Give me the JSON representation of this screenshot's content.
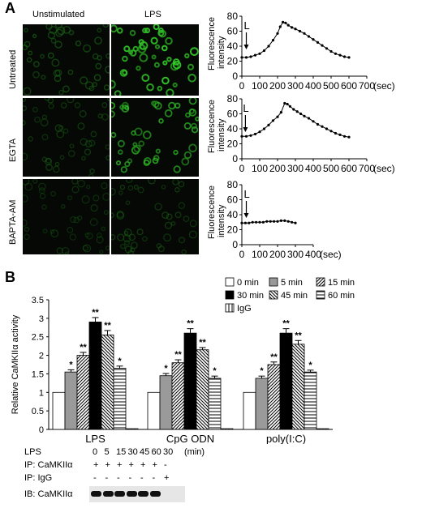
{
  "panel_a": {
    "letter": "A",
    "col_labels": [
      "Unstimulated",
      "LPS"
    ],
    "row_labels": [
      "Untreated",
      "EGTA",
      "BAPTA-AM"
    ],
    "micrograph_density": [
      [
        0.35,
        0.85
      ],
      [
        0.25,
        0.7
      ],
      [
        0.2,
        0.25
      ]
    ]
  },
  "panel_b": {
    "letter": "B",
    "legend": [
      {
        "label": "0  min",
        "pattern": "white"
      },
      {
        "label": "5  min",
        "pattern": "gray"
      },
      {
        "label": "15 min",
        "pattern": "diag-right"
      },
      {
        "label": "30 min",
        "pattern": "black"
      },
      {
        "label": "45 min",
        "pattern": "diag-left"
      },
      {
        "label": "60 min",
        "pattern": "horiz"
      },
      {
        "label": "IgG",
        "pattern": "vert"
      }
    ]
  },
  "western_blot": {
    "lps_label": "LPS",
    "times": [
      "0",
      "5",
      "15",
      "30",
      "45",
      "60",
      "30"
    ],
    "unit": "(min)",
    "rows": [
      {
        "label": "IP: CaMKIIα",
        "marks": [
          "+",
          "+",
          "+",
          "+",
          "+",
          "+",
          "-"
        ]
      },
      {
        "label": "IP: IgG",
        "marks": [
          "-",
          "-",
          "-",
          "-",
          "-",
          "-",
          "+"
        ]
      }
    ],
    "ib_label": "IB: CaMKIIα",
    "band_present": [
      true,
      true,
      true,
      true,
      true,
      true,
      false
    ]
  },
  "chart_data": [
    {
      "type": "line",
      "ylabel": "Fluorescence intensity",
      "xunit": "(sec)",
      "annotation": "L",
      "arrow_x": 25,
      "xlim": [
        0,
        700
      ],
      "ylim": [
        0,
        80
      ],
      "xticks": [
        0,
        100,
        200,
        300,
        400,
        500,
        600,
        700
      ],
      "yticks": [
        0,
        20,
        40,
        60,
        80
      ],
      "points": [
        [
          0,
          25
        ],
        [
          25,
          25
        ],
        [
          50,
          26
        ],
        [
          75,
          28
        ],
        [
          100,
          30
        ],
        [
          125,
          34
        ],
        [
          150,
          40
        ],
        [
          175,
          48
        ],
        [
          200,
          57
        ],
        [
          215,
          66
        ],
        [
          230,
          72
        ],
        [
          245,
          71
        ],
        [
          260,
          68
        ],
        [
          280,
          65
        ],
        [
          300,
          63
        ],
        [
          325,
          60
        ],
        [
          350,
          57
        ],
        [
          375,
          53
        ],
        [
          400,
          49
        ],
        [
          425,
          45
        ],
        [
          450,
          41
        ],
        [
          475,
          37
        ],
        [
          500,
          33
        ],
        [
          525,
          30
        ],
        [
          550,
          28
        ],
        [
          575,
          26
        ],
        [
          600,
          25
        ]
      ]
    },
    {
      "type": "line",
      "ylabel": "Fluorescence intensity",
      "xunit": "(sec)",
      "annotation": "L",
      "arrow_x": 20,
      "xlim": [
        0,
        700
      ],
      "ylim": [
        0,
        80
      ],
      "xticks": [
        0,
        100,
        200,
        300,
        400,
        500,
        600,
        700
      ],
      "yticks": [
        0,
        20,
        40,
        60,
        80
      ],
      "points": [
        [
          0,
          30
        ],
        [
          25,
          30
        ],
        [
          50,
          31
        ],
        [
          75,
          33
        ],
        [
          100,
          36
        ],
        [
          125,
          40
        ],
        [
          150,
          45
        ],
        [
          175,
          51
        ],
        [
          200,
          56
        ],
        [
          220,
          62
        ],
        [
          240,
          74
        ],
        [
          255,
          73
        ],
        [
          270,
          70
        ],
        [
          290,
          66
        ],
        [
          310,
          63
        ],
        [
          330,
          60
        ],
        [
          350,
          57
        ],
        [
          375,
          54
        ],
        [
          400,
          50
        ],
        [
          425,
          46
        ],
        [
          450,
          43
        ],
        [
          475,
          40
        ],
        [
          500,
          37
        ],
        [
          525,
          34
        ],
        [
          550,
          32
        ],
        [
          575,
          30
        ],
        [
          600,
          29
        ]
      ]
    },
    {
      "type": "line",
      "ylabel": "Fluorescence intensity",
      "xunit": "(sec)",
      "annotation": "L",
      "arrow_x": 25,
      "xlim": [
        0,
        400
      ],
      "ylim": [
        0,
        80
      ],
      "xticks": [
        0,
        100,
        200,
        300,
        400
      ],
      "yticks": [
        0,
        20,
        40,
        60,
        80
      ],
      "points": [
        [
          0,
          29
        ],
        [
          20,
          29
        ],
        [
          40,
          29
        ],
        [
          60,
          30
        ],
        [
          80,
          30
        ],
        [
          100,
          30
        ],
        [
          120,
          30
        ],
        [
          140,
          31
        ],
        [
          160,
          31
        ],
        [
          180,
          31
        ],
        [
          200,
          31
        ],
        [
          220,
          32
        ],
        [
          240,
          32
        ],
        [
          260,
          31
        ],
        [
          280,
          30
        ],
        [
          300,
          29
        ]
      ]
    },
    {
      "type": "bar",
      "ylabel": "Relative CaMKIIα activity",
      "ylim": [
        0,
        3.5
      ],
      "yticks": [
        "0",
        "0.5",
        "1",
        "1.5",
        "2",
        "2.5",
        "3",
        "3.5"
      ],
      "categories": [
        "LPS",
        "CpG  ODN",
        "poly(I:C)"
      ],
      "series": [
        {
          "name": "0  min",
          "values": [
            1.0,
            1.0,
            1.0
          ],
          "errors": [
            0,
            0,
            0
          ],
          "stars": [
            "",
            "",
            ""
          ]
        },
        {
          "name": "5  min",
          "values": [
            1.55,
            1.45,
            1.38
          ],
          "errors": [
            0.06,
            0.06,
            0.06
          ],
          "stars": [
            "*",
            "*",
            "*"
          ]
        },
        {
          "name": "15 min",
          "values": [
            2.0,
            1.8,
            1.75
          ],
          "errors": [
            0.08,
            0.08,
            0.07
          ],
          "stars": [
            "**",
            "**",
            "**"
          ]
        },
        {
          "name": "30 min",
          "values": [
            2.9,
            2.6,
            2.6
          ],
          "errors": [
            0.12,
            0.12,
            0.12
          ],
          "stars": [
            "**",
            "**",
            "**"
          ]
        },
        {
          "name": "45 min",
          "values": [
            2.55,
            2.15,
            2.3
          ],
          "errors": [
            0.12,
            0.06,
            0.1
          ],
          "stars": [
            "**",
            "**",
            "**"
          ]
        },
        {
          "name": "60 min",
          "values": [
            1.65,
            1.38,
            1.55
          ],
          "errors": [
            0.06,
            0.06,
            0.05
          ],
          "stars": [
            "*",
            "*",
            "*"
          ]
        },
        {
          "name": "IgG",
          "values": [
            0.02,
            0.02,
            0.02
          ],
          "errors": [
            0,
            0,
            0
          ],
          "stars": [
            "",
            "",
            ""
          ]
        }
      ]
    }
  ]
}
